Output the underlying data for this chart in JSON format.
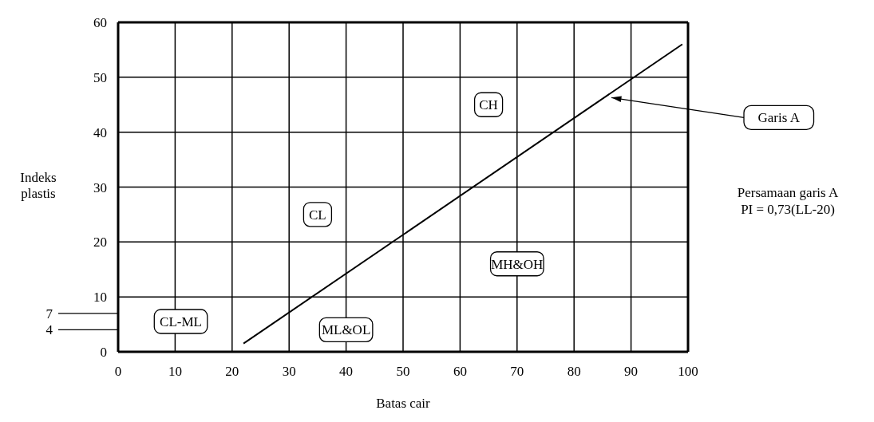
{
  "chart_data": {
    "type": "line",
    "xlabel": "Batas cair",
    "ylabel": "Indeks plastis",
    "x": [
      22,
      99
    ],
    "series": [
      {
        "color": "#000000",
        "values": [
          1.5,
          56
        ]
      }
    ],
    "xlim": [
      0,
      100
    ],
    "xticks": [
      0,
      10,
      20,
      30,
      40,
      50,
      60,
      70,
      80,
      90,
      100
    ],
    "ylim": [
      0,
      60
    ],
    "yticks": [
      0,
      10,
      20,
      30,
      40,
      50,
      60
    ],
    "ref_lines": [
      {
        "axis": "y",
        "value": 7,
        "label": "7"
      },
      {
        "axis": "y",
        "value": 4,
        "label": "4"
      }
    ],
    "annotations": [
      "CH",
      "CL",
      "MH&OH",
      "CL-ML",
      "ML&OL",
      {
        "text": "Garis A",
        "x": 86,
        "y": 46
      },
      "Persamaan garis A\nPI = 0,73(LL-20)"
    ],
    "grid": true,
    "marker": "none",
    "line_style": "solid"
  }
}
